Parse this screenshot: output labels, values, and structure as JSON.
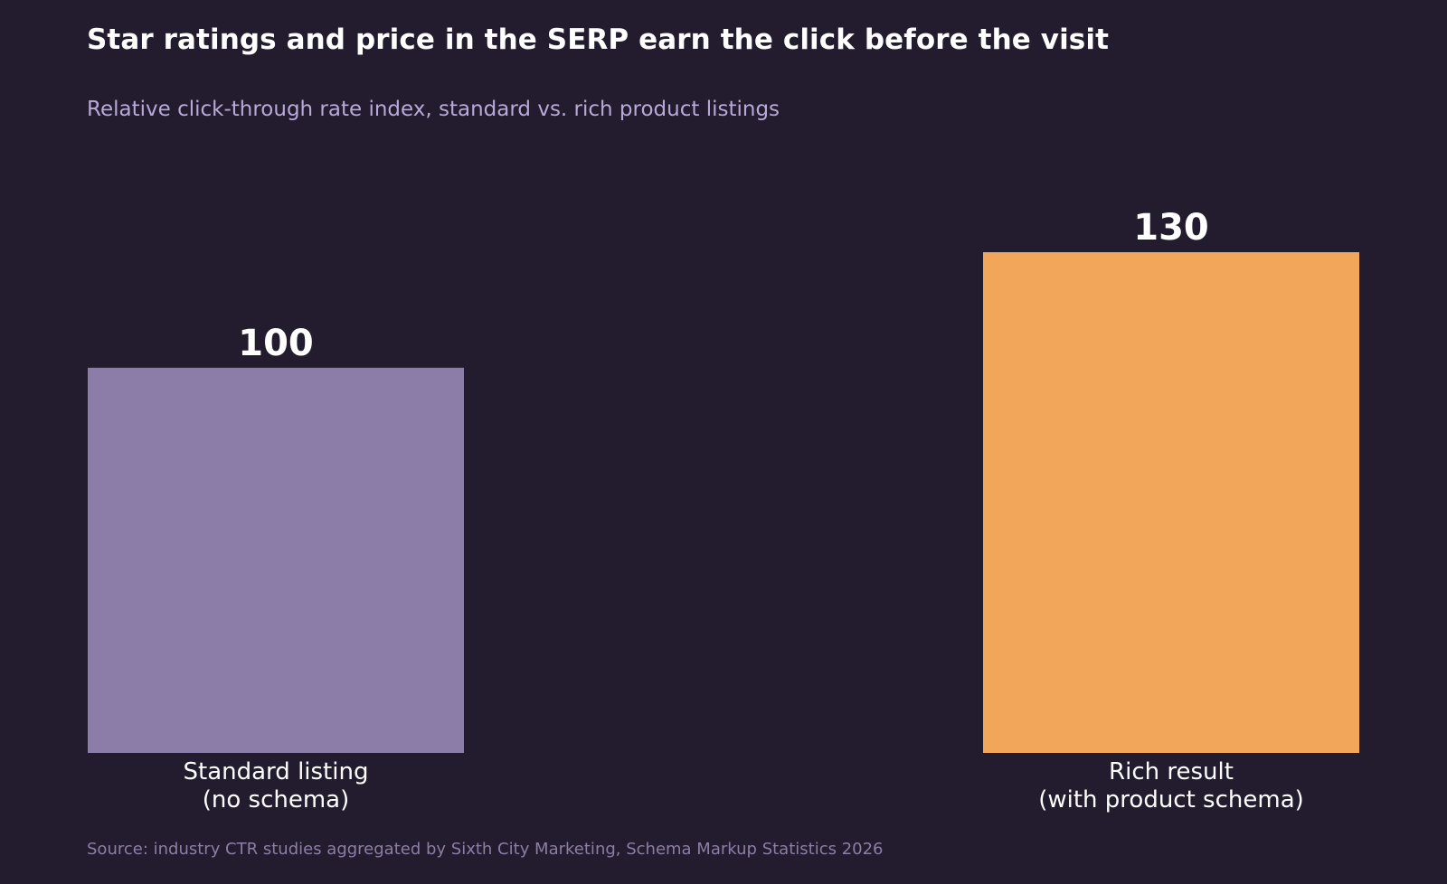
{
  "header": {
    "title": "Star ratings and price in the SERP earn the click before the visit",
    "subtitle": "Relative click-through rate index, standard vs. rich product listings"
  },
  "footer": {
    "source": "Source: industry CTR studies aggregated by Sixth City Marketing, Schema Markup Statistics 2026"
  },
  "chart_data": {
    "type": "bar",
    "title": "Star ratings and price in the SERP earn the click before the visit",
    "subtitle": "Relative click-through rate index, standard vs. rich product listings",
    "categories": [
      [
        "Standard listing",
        "(no schema)"
      ],
      [
        "Rich result",
        "(with product schema)"
      ]
    ],
    "values": [
      100,
      130
    ],
    "colors": [
      "#8c7ca8",
      "#f2a65a"
    ],
    "ylim": [
      0,
      130
    ],
    "grid": false,
    "legend": "none",
    "data_labels": true
  }
}
